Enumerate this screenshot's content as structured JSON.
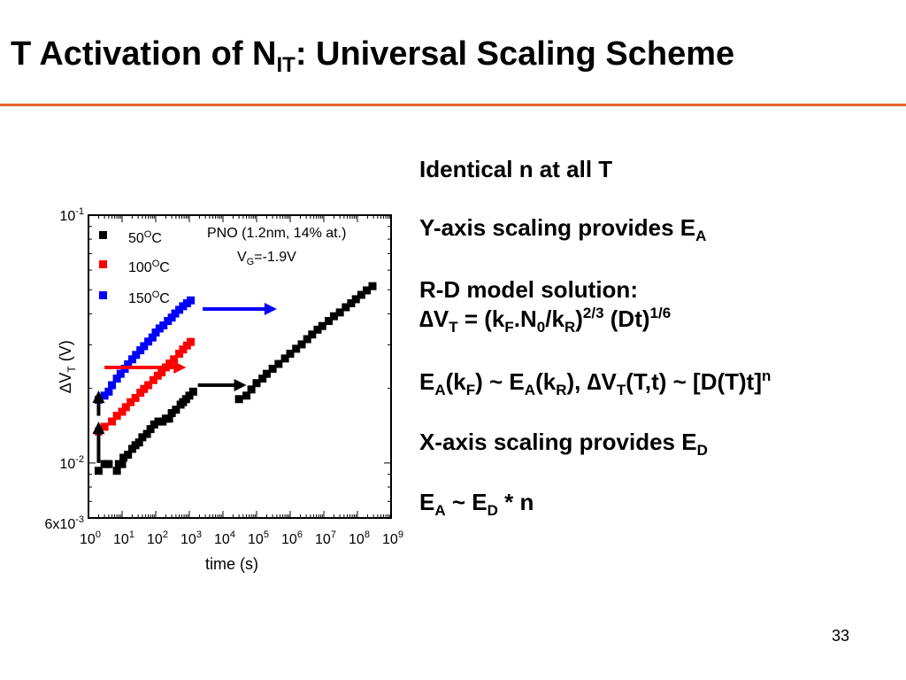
{
  "slide": {
    "title_pre": "T Activation of N",
    "title_sub": "IT",
    "title_post": ": Universal Scaling Scheme",
    "page_number": "33",
    "accent_color": "#e8642c"
  },
  "bullets": {
    "b1": "Identical n at all T",
    "b2_pre": "Y-axis scaling provides E",
    "b2_sub": "A",
    "b3": "R-D model solution:",
    "b4": [
      "∆V",
      "T",
      " = (k",
      "F",
      ".N",
      "0",
      "/k",
      "R",
      ")",
      "2/3",
      " (Dt)",
      "1/6"
    ],
    "b5": [
      "E",
      "A",
      "(k",
      "F",
      ") ~ E",
      "A",
      "(k",
      "R",
      "), ∆V",
      "T",
      "(T,t) ~ [D(T)t]",
      "n"
    ],
    "b6_pre": "X-axis scaling provides E",
    "b6_sub": "D",
    "b7": [
      "E",
      "A",
      " ~ E",
      "D",
      " * n"
    ]
  },
  "chart_data": {
    "type": "scatter",
    "x_scale": "log",
    "y_scale": "log",
    "xlim": [
      1,
      1000000000
    ],
    "ylim": [
      0.006,
      0.1
    ],
    "xlabel": "time (s)",
    "ylabel_pre": "∆V",
    "ylabel_sub": "T",
    "ylabel_post": " (V)",
    "x_ticks": [
      {
        "value": 1,
        "base": "10",
        "exp": "0"
      },
      {
        "value": 10,
        "base": "10",
        "exp": "1"
      },
      {
        "value": 100,
        "base": "10",
        "exp": "2"
      },
      {
        "value": 1000,
        "base": "10",
        "exp": "3"
      },
      {
        "value": 10000,
        "base": "10",
        "exp": "4"
      },
      {
        "value": 100000,
        "base": "10",
        "exp": "5"
      },
      {
        "value": 1000000,
        "base": "10",
        "exp": "6"
      },
      {
        "value": 10000000,
        "base": "10",
        "exp": "7"
      },
      {
        "value": 100000000,
        "base": "10",
        "exp": "8"
      },
      {
        "value": 1000000000,
        "base": "10",
        "exp": "9"
      }
    ],
    "y_ticks": [
      {
        "value": 0.1,
        "base": "10",
        "exp": "-1"
      },
      {
        "value": 0.01,
        "base": "10",
        "exp": "-2"
      },
      {
        "value": 0.006,
        "base": "6x10",
        "exp": "-3"
      }
    ],
    "annotations": {
      "condition": "PNO (1.2nm, 14% at.)",
      "vg_pre": "V",
      "vg_sub": "G",
      "vg_post": "=-1.9V"
    },
    "legend_position": "top-left",
    "series": [
      {
        "name_pre": "50",
        "name_sup": "O",
        "name_post": "C",
        "color": "#000000",
        "points": [
          [
            2,
            0.0093
          ],
          [
            3,
            0.0099
          ],
          [
            4,
            0.0099
          ],
          [
            7,
            0.0093
          ],
          [
            8,
            0.0099
          ],
          [
            10,
            0.0099
          ],
          [
            11,
            0.0105
          ],
          [
            15,
            0.0108
          ],
          [
            20,
            0.0114
          ],
          [
            25,
            0.0118
          ],
          [
            32,
            0.0121
          ],
          [
            40,
            0.0127
          ],
          [
            55,
            0.0131
          ],
          [
            70,
            0.0137
          ],
          [
            90,
            0.0143
          ],
          [
            120,
            0.0147
          ],
          [
            160,
            0.0147
          ],
          [
            200,
            0.0151
          ],
          [
            250,
            0.0151
          ],
          [
            300,
            0.0159
          ],
          [
            400,
            0.0164
          ],
          [
            550,
            0.0172
          ],
          [
            650,
            0.0176
          ],
          [
            800,
            0.0181
          ],
          [
            1000,
            0.0187
          ],
          [
            1300,
            0.0194
          ]
        ]
      },
      {
        "name_pre": "100",
        "name_sup": "O",
        "name_post": "C",
        "color": "#ff0000",
        "points": [
          [
            2,
            0.0134
          ],
          [
            3,
            0.014
          ],
          [
            5,
            0.0147
          ],
          [
            7,
            0.0155
          ],
          [
            10,
            0.0161
          ],
          [
            13,
            0.0168
          ],
          [
            18,
            0.0176
          ],
          [
            25,
            0.0183
          ],
          [
            35,
            0.0192
          ],
          [
            45,
            0.0199
          ],
          [
            60,
            0.0206
          ],
          [
            85,
            0.0216
          ],
          [
            115,
            0.0225
          ],
          [
            150,
            0.0232
          ],
          [
            200,
            0.0243
          ],
          [
            260,
            0.0252
          ],
          [
            350,
            0.0262
          ],
          [
            500,
            0.0276
          ],
          [
            650,
            0.0287
          ],
          [
            850,
            0.0298
          ],
          [
            1100,
            0.0308
          ]
        ]
      },
      {
        "name_pre": "150",
        "name_sup": "O",
        "name_post": "C",
        "color": "#0000ff",
        "points": [
          [
            2,
            0.018
          ],
          [
            3,
            0.0187
          ],
          [
            4,
            0.0194
          ],
          [
            5,
            0.0206
          ],
          [
            7,
            0.0219
          ],
          [
            9,
            0.0229
          ],
          [
            12,
            0.024
          ],
          [
            15,
            0.025
          ],
          [
            20,
            0.0262
          ],
          [
            26,
            0.0273
          ],
          [
            35,
            0.0285
          ],
          [
            45,
            0.0296
          ],
          [
            60,
            0.0309
          ],
          [
            80,
            0.0321
          ],
          [
            100,
            0.0336
          ],
          [
            130,
            0.0349
          ],
          [
            170,
            0.0359
          ],
          [
            230,
            0.0374
          ],
          [
            300,
            0.0386
          ],
          [
            380,
            0.0401
          ],
          [
            500,
            0.0415
          ],
          [
            650,
            0.0429
          ],
          [
            850,
            0.0441
          ],
          [
            1100,
            0.0453
          ]
        ]
      },
      {
        "name": "",
        "color": "#000000",
        "points": [
          [
            30000,
            0.0181
          ],
          [
            50000,
            0.0187
          ],
          [
            70000,
            0.0198
          ],
          [
            100000,
            0.021
          ],
          [
            150000,
            0.0219
          ],
          [
            200000,
            0.0229
          ],
          [
            300000,
            0.024
          ],
          [
            450000,
            0.0251
          ],
          [
            700000,
            0.0264
          ],
          [
            1000000,
            0.0276
          ],
          [
            1500000,
            0.0289
          ],
          [
            2200000,
            0.0301
          ],
          [
            3200000,
            0.0316
          ],
          [
            4500000,
            0.033
          ],
          [
            6500000,
            0.0345
          ],
          [
            9000000,
            0.0357
          ],
          [
            14000000,
            0.0374
          ],
          [
            20000000,
            0.0391
          ],
          [
            30000000,
            0.0405
          ],
          [
            45000000,
            0.0425
          ],
          [
            65000000,
            0.0441
          ],
          [
            90000000,
            0.0458
          ],
          [
            130000000,
            0.0477
          ],
          [
            190000000,
            0.0497
          ],
          [
            280000000,
            0.0517
          ]
        ]
      }
    ],
    "arrows": [
      {
        "direction": "right",
        "from": [
          3,
          0.0243
        ],
        "to": [
          800,
          0.0243
        ],
        "color": "#ff0000"
      },
      {
        "direction": "right",
        "from": [
          1800,
          0.0206
        ],
        "to": [
          50000,
          0.0206
        ],
        "color": "#000000"
      },
      {
        "direction": "right",
        "from": [
          2500,
          0.0418
        ],
        "to": [
          400000,
          0.0418
        ],
        "color": "#0000ff"
      },
      {
        "direction": "up",
        "from": [
          2,
          0.01
        ],
        "to": [
          2,
          0.0147
        ],
        "color": "#000000"
      },
      {
        "direction": "up",
        "from": [
          2,
          0.0155
        ],
        "to": [
          2,
          0.0196
        ],
        "color": "#000000"
      }
    ]
  }
}
